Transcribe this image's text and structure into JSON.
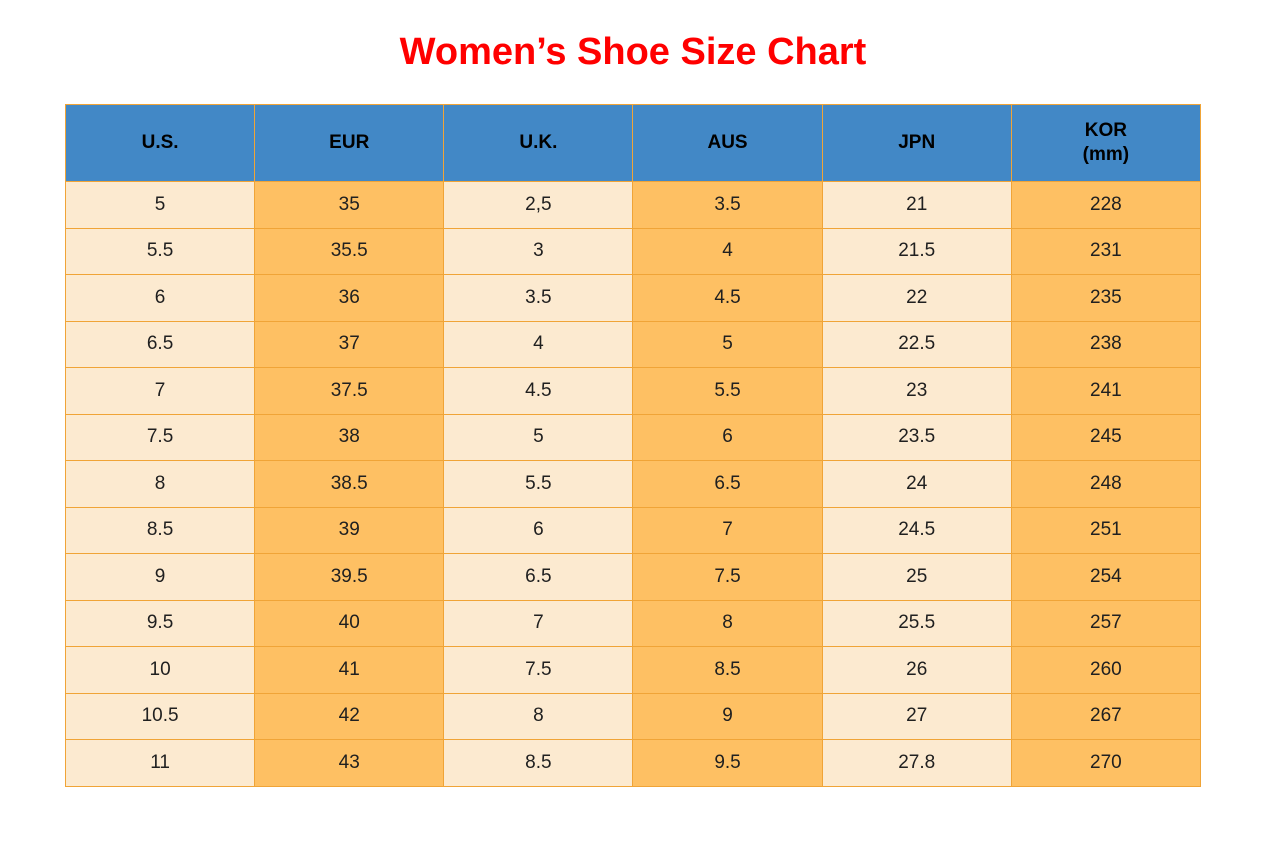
{
  "page": {
    "title": "Women’s Shoe Size Chart"
  },
  "colors": {
    "title_red": "#ff0000",
    "header_blue": "#4288c6",
    "cell_orange": "#fec063",
    "cell_cream": "#fcead0",
    "border_orange": "#f0a437",
    "text_dark": "#202020"
  },
  "table": {
    "headers": [
      {
        "label": "U.S.",
        "sublabel": ""
      },
      {
        "label": "EUR",
        "sublabel": ""
      },
      {
        "label": "U.K.",
        "sublabel": ""
      },
      {
        "label": "AUS",
        "sublabel": ""
      },
      {
        "label": "JPN",
        "sublabel": ""
      },
      {
        "label": "KOR",
        "sublabel": "(mm)"
      }
    ],
    "rows": [
      [
        "5",
        "35",
        "2,5",
        "3.5",
        "21",
        "228"
      ],
      [
        "5.5",
        "35.5",
        "3",
        "4",
        "21.5",
        "231"
      ],
      [
        "6",
        "36",
        "3.5",
        "4.5",
        "22",
        "235"
      ],
      [
        "6.5",
        "37",
        "4",
        "5",
        "22.5",
        "238"
      ],
      [
        "7",
        "37.5",
        "4.5",
        "5.5",
        "23",
        "241"
      ],
      [
        "7.5",
        "38",
        "5",
        "6",
        "23.5",
        "245"
      ],
      [
        "8",
        "38.5",
        "5.5",
        "6.5",
        "24",
        "248"
      ],
      [
        "8.5",
        "39",
        "6",
        "7",
        "24.5",
        "251"
      ],
      [
        "9",
        "39.5",
        "6.5",
        "7.5",
        "25",
        "254"
      ],
      [
        "9.5",
        "40",
        "7",
        "8",
        "25.5",
        "257"
      ],
      [
        "10",
        "41",
        "7.5",
        "8.5",
        "26",
        "260"
      ],
      [
        "10.5",
        "42",
        "8",
        "9",
        "27",
        "267"
      ],
      [
        "11",
        "43",
        "8.5",
        "9.5",
        "27.8",
        "270"
      ]
    ]
  },
  "chart_data": {
    "type": "table",
    "title": "Women’s Shoe Size Chart",
    "columns": [
      "U.S.",
      "EUR",
      "U.K.",
      "AUS",
      "JPN",
      "KOR (mm)"
    ],
    "rows": [
      [
        "5",
        "35",
        "2,5",
        "3.5",
        "21",
        "228"
      ],
      [
        "5.5",
        "35.5",
        "3",
        "4",
        "21.5",
        "231"
      ],
      [
        "6",
        "36",
        "3.5",
        "4.5",
        "22",
        "235"
      ],
      [
        "6.5",
        "37",
        "4",
        "5",
        "22.5",
        "238"
      ],
      [
        "7",
        "37.5",
        "4.5",
        "5.5",
        "23",
        "241"
      ],
      [
        "7.5",
        "38",
        "5",
        "6",
        "23.5",
        "245"
      ],
      [
        "8",
        "38.5",
        "5.5",
        "6.5",
        "24",
        "248"
      ],
      [
        "8.5",
        "39",
        "6",
        "7",
        "24.5",
        "251"
      ],
      [
        "9",
        "39.5",
        "6.5",
        "7.5",
        "25",
        "254"
      ],
      [
        "9.5",
        "40",
        "7",
        "8",
        "25.5",
        "257"
      ],
      [
        "10",
        "41",
        "7.5",
        "8.5",
        "26",
        "260"
      ],
      [
        "10.5",
        "42",
        "8",
        "9",
        "27",
        "267"
      ],
      [
        "11",
        "43",
        "8.5",
        "9.5",
        "27.8",
        "270"
      ]
    ],
    "layout": {
      "column_shading_pattern": [
        "cream",
        "orange",
        "cream",
        "orange",
        "cream",
        "orange"
      ],
      "header_background": "blue",
      "grid": true
    }
  }
}
